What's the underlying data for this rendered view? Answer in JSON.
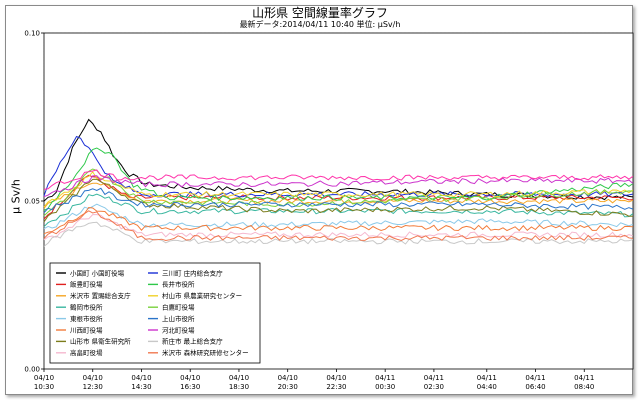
{
  "chart_data": {
    "type": "line",
    "title": "山形県 空間線量率グラフ",
    "subtitle": "最新データ:2014/04/11 10:40 単位: μSv/h",
    "ylabel": "μ Sv/h",
    "ylim": [
      0.0,
      0.1
    ],
    "yticks": [
      "0.00",
      "0.05",
      "0.10"
    ],
    "grid": true,
    "legend_position": "bottom-left",
    "x_tick_labels": [
      [
        "04/10",
        "10:30"
      ],
      [
        "04/10",
        "12:30"
      ],
      [
        "04/10",
        "14:30"
      ],
      [
        "04/10",
        "16:30"
      ],
      [
        "04/10",
        "18:30"
      ],
      [
        "04/10",
        "20:30"
      ],
      [
        "04/10",
        "22:30"
      ],
      [
        "04/11",
        "00:30"
      ],
      [
        "04/11",
        "02:30"
      ],
      [
        "04/11",
        "04:40"
      ],
      [
        "04/11",
        "06:40"
      ],
      [
        "04/11",
        "08:40"
      ]
    ],
    "x_hours": [
      0,
      2,
      4,
      6,
      8,
      10,
      12,
      14,
      16,
      18.17,
      20.17,
      22.17
    ],
    "x_max_hours": 24.17,
    "series": [
      {
        "name": "小国町 小国町役場",
        "color": "#000000",
        "points": [
          [
            0,
            0.05
          ],
          [
            0.5,
            0.053
          ],
          [
            1.2,
            0.066
          ],
          [
            1.8,
            0.074
          ],
          [
            2.3,
            0.071
          ],
          [
            2.9,
            0.063
          ],
          [
            3.5,
            0.058
          ],
          [
            4.2,
            0.055
          ],
          [
            6,
            0.054
          ],
          [
            10,
            0.053
          ],
          [
            14,
            0.053
          ],
          [
            18,
            0.052
          ],
          [
            24.17,
            0.051
          ]
        ]
      },
      {
        "name": "飯豊町役場",
        "color": "#e0201f",
        "points": [
          [
            0,
            0.045
          ],
          [
            1,
            0.052
          ],
          [
            1.8,
            0.058
          ],
          [
            2.5,
            0.055
          ],
          [
            3.5,
            0.051
          ],
          [
            6,
            0.051
          ],
          [
            12,
            0.051
          ],
          [
            18,
            0.051
          ],
          [
            24.17,
            0.051
          ]
        ]
      },
      {
        "name": "米沢市 置賜総合支庁",
        "color": "#f5a623",
        "points": [
          [
            0,
            0.048
          ],
          [
            1,
            0.052
          ],
          [
            2,
            0.056
          ],
          [
            3,
            0.053
          ],
          [
            4,
            0.05
          ],
          [
            10,
            0.05
          ],
          [
            18,
            0.05
          ],
          [
            24.17,
            0.05
          ]
        ]
      },
      {
        "name": "鶴岡市役所",
        "color": "#3ab7a0",
        "points": [
          [
            0,
            0.043
          ],
          [
            1,
            0.047
          ],
          [
            2,
            0.052
          ],
          [
            3,
            0.05
          ],
          [
            4,
            0.047
          ],
          [
            10,
            0.047
          ],
          [
            18,
            0.047
          ],
          [
            24.17,
            0.046
          ]
        ]
      },
      {
        "name": "東根市役所",
        "color": "#8bc9e8",
        "points": [
          [
            0,
            0.041
          ],
          [
            1,
            0.045
          ],
          [
            2,
            0.049
          ],
          [
            3,
            0.046
          ],
          [
            4,
            0.043
          ],
          [
            10,
            0.043
          ],
          [
            18,
            0.044
          ],
          [
            24.17,
            0.043
          ]
        ]
      },
      {
        "name": "川西町役場",
        "color": "#f27c3b",
        "points": [
          [
            0,
            0.04
          ],
          [
            1,
            0.044
          ],
          [
            2,
            0.048
          ],
          [
            3,
            0.045
          ],
          [
            4,
            0.042
          ],
          [
            10,
            0.042
          ],
          [
            18,
            0.042
          ],
          [
            24.17,
            0.042
          ]
        ]
      },
      {
        "name": "山形市 県衛生研究所",
        "color": "#7c7c1c",
        "points": [
          [
            0,
            0.044
          ],
          [
            1,
            0.05
          ],
          [
            2,
            0.057
          ],
          [
            3,
            0.053
          ],
          [
            4,
            0.049
          ],
          [
            10,
            0.047
          ],
          [
            18,
            0.048
          ],
          [
            24.17,
            0.046
          ]
        ]
      },
      {
        "name": "高畠町役場",
        "color": "#f5b8cf",
        "points": [
          [
            0,
            0.038
          ],
          [
            1,
            0.042
          ],
          [
            2,
            0.046
          ],
          [
            3,
            0.043
          ],
          [
            4,
            0.04
          ],
          [
            10,
            0.04
          ],
          [
            18,
            0.04
          ],
          [
            24.17,
            0.04
          ]
        ]
      },
      {
        "name": "三川町 庄内総合支庁",
        "color": "#1a2fd6",
        "points": [
          [
            0,
            0.052
          ],
          [
            0.8,
            0.063
          ],
          [
            1.4,
            0.07
          ],
          [
            2,
            0.064
          ],
          [
            2.8,
            0.056
          ],
          [
            4,
            0.052
          ],
          [
            10,
            0.052
          ],
          [
            18,
            0.052
          ],
          [
            24.17,
            0.052
          ]
        ]
      },
      {
        "name": "長井市役所",
        "color": "#2ec84a",
        "points": [
          [
            0,
            0.047
          ],
          [
            1,
            0.055
          ],
          [
            2,
            0.065
          ],
          [
            2.7,
            0.065
          ],
          [
            3.6,
            0.055
          ],
          [
            5,
            0.051
          ],
          [
            12,
            0.051
          ],
          [
            18,
            0.051
          ],
          [
            24.17,
            0.055
          ]
        ]
      },
      {
        "name": "村山市 県農業研究センター",
        "color": "#f0d22a",
        "points": [
          [
            0,
            0.049
          ],
          [
            1,
            0.053
          ],
          [
            2,
            0.058
          ],
          [
            3,
            0.055
          ],
          [
            4,
            0.052
          ],
          [
            10,
            0.052
          ],
          [
            18,
            0.052
          ],
          [
            24.17,
            0.053
          ]
        ]
      },
      {
        "name": "白鷹町役場",
        "color": "#7ad23c",
        "points": [
          [
            0,
            0.046
          ],
          [
            1,
            0.051
          ],
          [
            2,
            0.06
          ],
          [
            3,
            0.055
          ],
          [
            4,
            0.05
          ],
          [
            10,
            0.049
          ],
          [
            18,
            0.051
          ],
          [
            24.17,
            0.053
          ]
        ]
      },
      {
        "name": "上山市役所",
        "color": "#2a74c9",
        "points": [
          [
            0,
            0.047
          ],
          [
            1,
            0.05
          ],
          [
            2,
            0.054
          ],
          [
            3,
            0.051
          ],
          [
            4,
            0.049
          ],
          [
            10,
            0.049
          ],
          [
            18,
            0.049
          ],
          [
            24.17,
            0.048
          ]
        ]
      },
      {
        "name": "河北町役場",
        "color": "#cc33cc",
        "points": [
          [
            0,
            0.052
          ],
          [
            1,
            0.054
          ],
          [
            2,
            0.057
          ],
          [
            3,
            0.056
          ],
          [
            4,
            0.055
          ],
          [
            10,
            0.055
          ],
          [
            18,
            0.056
          ],
          [
            24.17,
            0.056
          ]
        ]
      },
      {
        "name": "新庄市 最上総合支庁",
        "color": "#c8c8c8",
        "points": [
          [
            0,
            0.037
          ],
          [
            1,
            0.041
          ],
          [
            2,
            0.044
          ],
          [
            3,
            0.041
          ],
          [
            4,
            0.038
          ],
          [
            10,
            0.038
          ],
          [
            18,
            0.038
          ],
          [
            24.17,
            0.038
          ]
        ]
      },
      {
        "name": "米沢市 森林研究研修センター",
        "color": "#f07850",
        "points": [
          [
            0,
            0.039
          ],
          [
            1,
            0.043
          ],
          [
            2,
            0.047
          ],
          [
            3,
            0.043
          ],
          [
            4,
            0.039
          ],
          [
            10,
            0.039
          ],
          [
            18,
            0.039
          ],
          [
            24.17,
            0.039
          ]
        ]
      },
      {
        "name": "",
        "color": "#ff33aa",
        "points": [
          [
            0,
            0.054
          ],
          [
            1,
            0.056
          ],
          [
            2,
            0.059
          ],
          [
            3,
            0.057
          ],
          [
            4,
            0.057
          ],
          [
            10,
            0.057
          ],
          [
            18,
            0.057
          ],
          [
            24.17,
            0.057
          ]
        ]
      }
    ]
  }
}
